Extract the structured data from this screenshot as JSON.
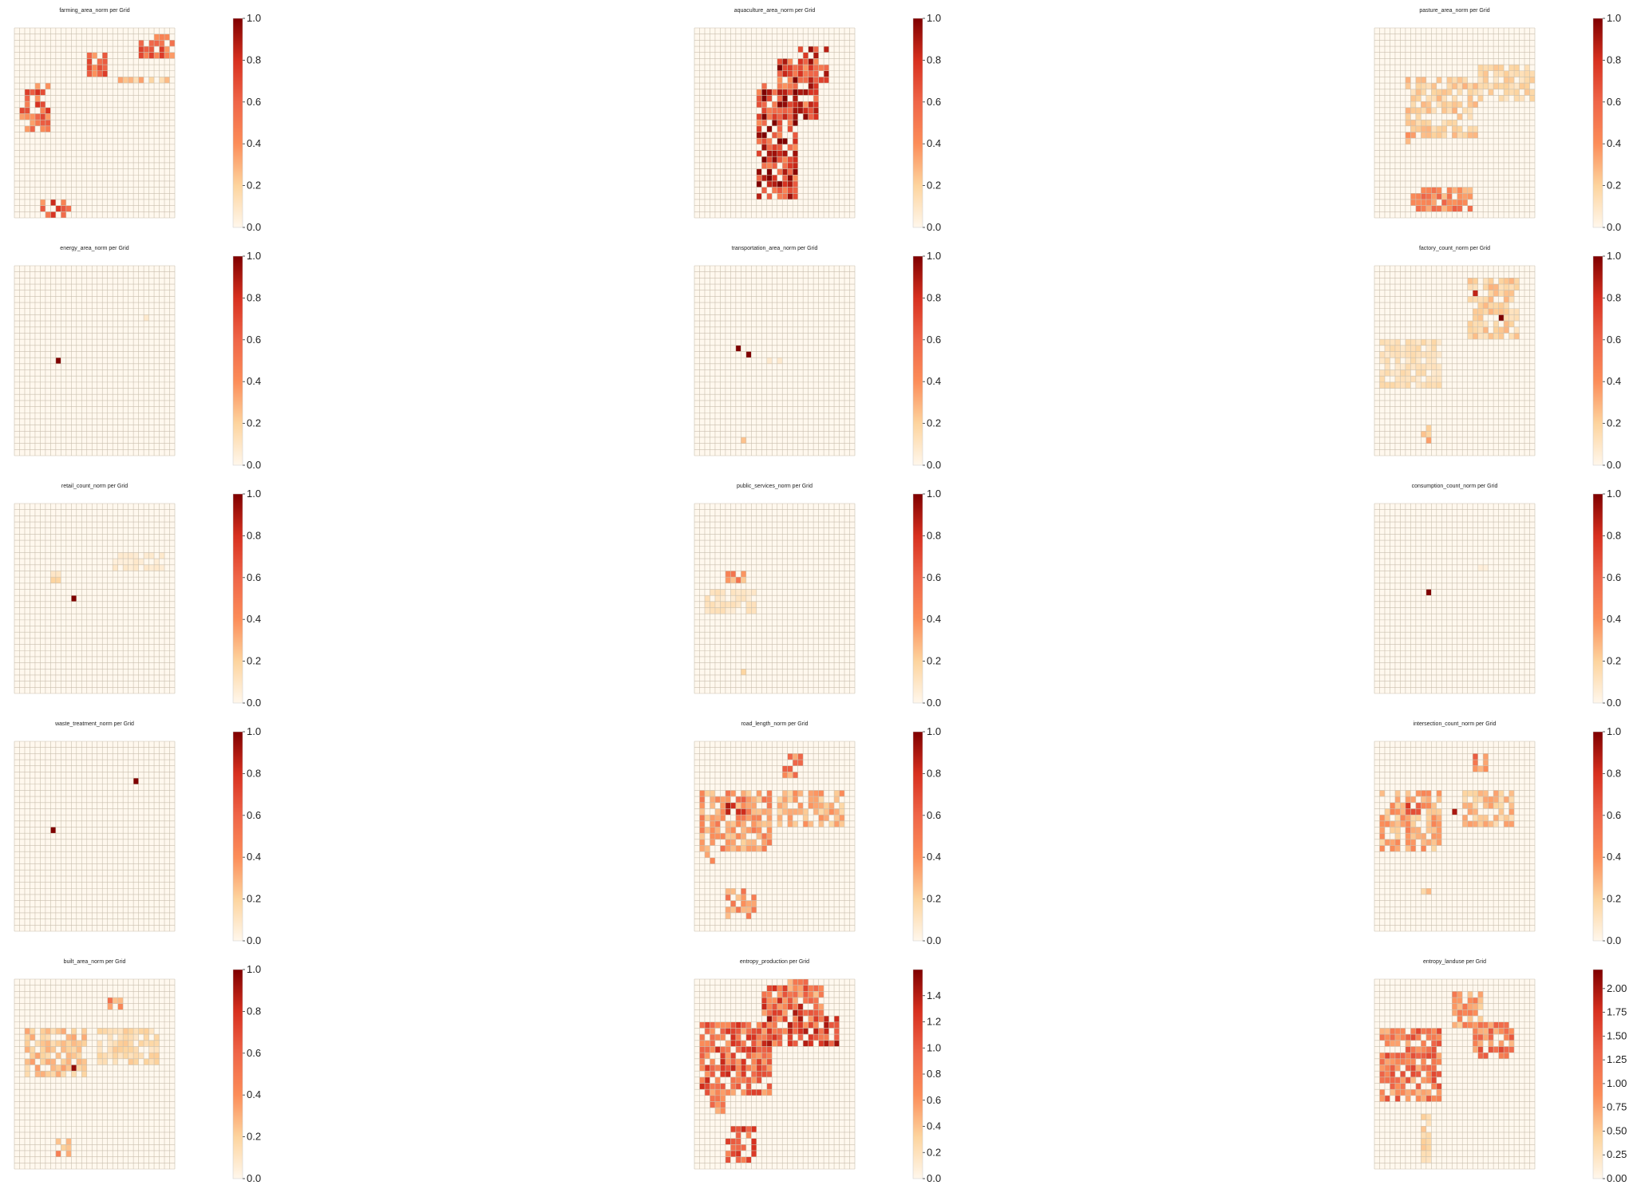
{
  "chart_data": [
    {
      "type": "heatmap",
      "title": "farming_area_norm per Grid",
      "colorbar": {
        "range": [
          0,
          1.0
        ],
        "ticks": [
          "0.0",
          "0.2",
          "0.4",
          "0.6",
          "0.8",
          "1.0"
        ]
      },
      "hotspots": [
        [
          24,
          1,
          16,
          4,
          0.75
        ],
        [
          14,
          4,
          4,
          4,
          0.7
        ],
        [
          2,
          9,
          5,
          8,
          0.7
        ],
        [
          19,
          8,
          12,
          1,
          0.3
        ],
        [
          5,
          28,
          6,
          6,
          0.75
        ],
        [
          1,
          12,
          2,
          3,
          0.6
        ]
      ]
    },
    {
      "type": "heatmap",
      "title": "aquaculture_area_norm per Grid",
      "colorbar": {
        "range": [
          0,
          1.0
        ],
        "ticks": [
          "0.0",
          "0.2",
          "0.4",
          "0.6",
          "0.8",
          "1.0"
        ]
      },
      "hotspots": [
        [
          12,
          9,
          8,
          19,
          0.9
        ],
        [
          16,
          5,
          8,
          10,
          0.85
        ],
        [
          20,
          3,
          6,
          6,
          0.8
        ]
      ]
    },
    {
      "type": "heatmap",
      "title": "pasture_area_norm per Grid",
      "colorbar": {
        "range": [
          0,
          1.0
        ],
        "ticks": [
          "0.0",
          "0.2",
          "0.4",
          "0.6",
          "0.8",
          "1.0"
        ]
      },
      "hotspots": [
        [
          6,
          8,
          14,
          10,
          0.25
        ],
        [
          20,
          6,
          16,
          6,
          0.2
        ],
        [
          7,
          26,
          12,
          4,
          0.55
        ],
        [
          11,
          29,
          2,
          1,
          0.95
        ],
        [
          6,
          17,
          2,
          2,
          0.5
        ]
      ]
    },
    {
      "type": "heatmap",
      "title": "energy_area_norm per Grid",
      "colorbar": {
        "range": [
          0,
          1.0
        ],
        "ticks": [
          "0.0",
          "0.2",
          "0.4",
          "0.6",
          "0.8",
          "1.0"
        ]
      },
      "hotspots": [
        [
          8,
          15,
          1,
          1,
          1.0
        ],
        [
          25,
          8,
          1,
          1,
          0.08
        ]
      ]
    },
    {
      "type": "heatmap",
      "title": "transportation_area_norm per Grid",
      "colorbar": {
        "range": [
          0,
          1.0
        ],
        "ticks": [
          "0.0",
          "0.2",
          "0.4",
          "0.6",
          "0.8",
          "1.0"
        ]
      },
      "hotspots": [
        [
          8,
          13,
          1,
          1,
          1.0
        ],
        [
          10,
          14,
          1,
          1,
          1.0
        ],
        [
          9,
          28,
          1,
          1,
          0.25
        ],
        [
          14,
          15,
          3,
          1,
          0.1
        ]
      ]
    },
    {
      "type": "heatmap",
      "title": "factory_count_norm per Grid",
      "colorbar": {
        "range": [
          0,
          1.0
        ],
        "ticks": [
          "0.0",
          "0.2",
          "0.4",
          "0.6",
          "0.8",
          "1.0"
        ]
      },
      "hotspots": [
        [
          18,
          2,
          10,
          10,
          0.25
        ],
        [
          24,
          8,
          1,
          1,
          1.0
        ],
        [
          19,
          4,
          1,
          1,
          0.85
        ],
        [
          1,
          12,
          12,
          8,
          0.15
        ],
        [
          9,
          26,
          2,
          3,
          0.3
        ]
      ]
    },
    {
      "type": "heatmap",
      "title": "retail_count_norm per Grid",
      "colorbar": {
        "range": [
          0,
          1.0
        ],
        "ticks": [
          "0.0",
          "0.2",
          "0.4",
          "0.6",
          "0.8",
          "1.0"
        ]
      },
      "hotspots": [
        [
          11,
          15,
          1,
          1,
          1.0
        ],
        [
          7,
          11,
          2,
          2,
          0.2
        ],
        [
          19,
          8,
          10,
          3,
          0.08
        ]
      ]
    },
    {
      "type": "heatmap",
      "title": "public_services_norm per Grid",
      "colorbar": {
        "range": [
          0,
          1.0
        ],
        "ticks": [
          "0.0",
          "0.2",
          "0.4",
          "0.6",
          "0.8",
          "1.0"
        ]
      },
      "hotspots": [
        [
          11,
          14,
          1,
          1,
          1.0
        ],
        [
          6,
          11,
          4,
          2,
          0.5
        ],
        [
          2,
          14,
          10,
          4,
          0.12
        ],
        [
          9,
          27,
          1,
          2,
          0.3
        ]
      ]
    },
    {
      "type": "heatmap",
      "title": "consumption_count_norm per Grid",
      "colorbar": {
        "range": [
          0,
          1.0
        ],
        "ticks": [
          "0.0",
          "0.2",
          "0.4",
          "0.6",
          "0.8",
          "1.0"
        ]
      },
      "hotspots": [
        [
          10,
          14,
          1,
          1,
          1.0
        ],
        [
          20,
          10,
          2,
          1,
          0.08
        ]
      ]
    },
    {
      "type": "heatmap",
      "title": "waste_treatment_norm per Grid",
      "colorbar": {
        "range": [
          0,
          1.0
        ],
        "ticks": [
          "0.0",
          "0.2",
          "0.4",
          "0.6",
          "0.8",
          "1.0"
        ]
      },
      "hotspots": [
        [
          23,
          6,
          1,
          1,
          1.0
        ],
        [
          7,
          14,
          1,
          1,
          1.0
        ]
      ]
    },
    {
      "type": "heatmap",
      "title": "road_length_norm per Grid",
      "colorbar": {
        "range": [
          0,
          1.0
        ],
        "ticks": [
          "0.0",
          "0.2",
          "0.4",
          "0.6",
          "0.8",
          "1.0"
        ]
      },
      "hotspots": [
        [
          1,
          8,
          14,
          10,
          0.45
        ],
        [
          6,
          9,
          4,
          3,
          0.75
        ],
        [
          17,
          2,
          4,
          4,
          0.55
        ],
        [
          16,
          8,
          13,
          6,
          0.35
        ],
        [
          6,
          24,
          6,
          5,
          0.45
        ],
        [
          2,
          18,
          2,
          2,
          0.4
        ]
      ]
    },
    {
      "type": "heatmap",
      "title": "intersection_count_norm per Grid",
      "colorbar": {
        "range": [
          0,
          1.0
        ],
        "ticks": [
          "0.0",
          "0.2",
          "0.4",
          "0.6",
          "0.8",
          "1.0"
        ]
      },
      "hotspots": [
        [
          1,
          8,
          12,
          10,
          0.4
        ],
        [
          6,
          9,
          3,
          3,
          0.75
        ],
        [
          15,
          11,
          1,
          1,
          0.9
        ],
        [
          19,
          2,
          3,
          3,
          0.55
        ],
        [
          17,
          8,
          10,
          6,
          0.3
        ],
        [
          9,
          24,
          2,
          2,
          0.35
        ]
      ]
    },
    {
      "type": "heatmap",
      "title": "built_area_norm per Grid",
      "colorbar": {
        "range": [
          0,
          1.0
        ],
        "ticks": [
          "0.0",
          "0.2",
          "0.4",
          "0.6",
          "0.8",
          "1.0"
        ]
      },
      "hotspots": [
        [
          2,
          8,
          12,
          8,
          0.3
        ],
        [
          11,
          14,
          1,
          1,
          0.95
        ],
        [
          18,
          3,
          3,
          2,
          0.5
        ],
        [
          16,
          8,
          12,
          6,
          0.2
        ],
        [
          8,
          26,
          3,
          3,
          0.4
        ]
      ]
    },
    {
      "type": "heatmap",
      "title": "entropy_production per Grid",
      "colorbar": {
        "range": [
          0,
          1.6
        ],
        "ticks": [
          "0.0",
          "0.2",
          "0.4",
          "0.6",
          "0.8",
          "1.0",
          "1.2",
          "1.4"
        ]
      },
      "hotspots": [
        [
          1,
          7,
          14,
          12,
          0.7
        ],
        [
          13,
          1,
          12,
          5,
          0.75
        ],
        [
          14,
          6,
          14,
          5,
          0.8
        ],
        [
          18,
          0,
          6,
          4,
          0.55
        ],
        [
          6,
          24,
          6,
          6,
          0.7
        ],
        [
          3,
          18,
          3,
          4,
          0.5
        ]
      ]
    },
    {
      "type": "heatmap",
      "title": "entropy_landuse per Grid",
      "colorbar": {
        "range": [
          0,
          2.2
        ],
        "ticks": [
          "0.00",
          "0.25",
          "0.50",
          "0.75",
          "1.00",
          "1.25",
          "1.50",
          "1.75",
          "2.00"
        ]
      },
      "hotspots": [
        [
          1,
          8,
          12,
          12,
          0.6
        ],
        [
          15,
          2,
          6,
          6,
          0.45
        ],
        [
          19,
          7,
          8,
          6,
          0.6
        ],
        [
          9,
          22,
          2,
          8,
          0.2
        ]
      ]
    }
  ]
}
